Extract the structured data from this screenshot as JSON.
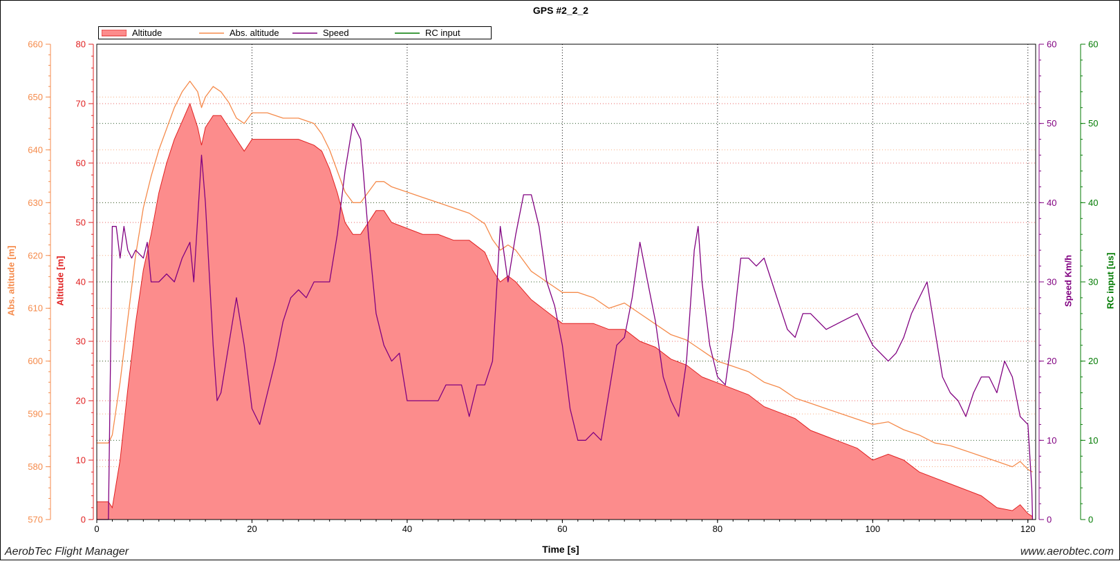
{
  "window": {
    "footer_left": "AerobTec Flight Manager",
    "footer_right": "www.aerobtec.com"
  },
  "colors": {
    "altitude_fill": "#fc8c8c",
    "altitude_line": "#e02020",
    "abs_altitude": "#f58a4a",
    "speed": "#800080",
    "rc_input": "#007a00",
    "grid_x": "#000000",
    "grid_alt": "#e02020",
    "grid_abs": "#f58a4a",
    "grid_speed": "#800080",
    "grid_rc": "#007a00"
  },
  "chart_data": {
    "type": "line",
    "title": "GPS #2_2_2",
    "xlabel": "Time [s]",
    "xlim": [
      0,
      121
    ],
    "x_ticks": [
      "0",
      "20",
      "40",
      "60",
      "80",
      "100",
      "120"
    ],
    "axes": {
      "altitude": {
        "label": "Altitude [m]",
        "range": [
          0,
          80
        ],
        "ticks": [
          "0",
          "10",
          "20",
          "30",
          "40",
          "50",
          "60",
          "70",
          "80"
        ]
      },
      "abs_altitude": {
        "label": "Abs. altitude [m]",
        "range": [
          570,
          660
        ],
        "ticks": [
          "570",
          "580",
          "590",
          "600",
          "610",
          "620",
          "630",
          "640",
          "650",
          "660"
        ]
      },
      "speed": {
        "label": "Speed Km/h",
        "range": [
          0,
          60
        ],
        "ticks": [
          "0",
          "10",
          "20",
          "30",
          "40",
          "50",
          "60"
        ]
      },
      "rc_input": {
        "label": "RC input [us]",
        "range": [
          0,
          60
        ],
        "ticks": [
          "0",
          "10",
          "20",
          "30",
          "40",
          "50",
          "60"
        ]
      }
    },
    "legend_placement": "top-left",
    "grid": true,
    "series": [
      {
        "name": "Altitude",
        "axis": "altitude",
        "style": "area",
        "points": [
          [
            0,
            3
          ],
          [
            1,
            3
          ],
          [
            1.5,
            3
          ],
          [
            2,
            2
          ],
          [
            3,
            10
          ],
          [
            4,
            22
          ],
          [
            5,
            33
          ],
          [
            6,
            42
          ],
          [
            7,
            48
          ],
          [
            8,
            55
          ],
          [
            9,
            60
          ],
          [
            10,
            64
          ],
          [
            11,
            67
          ],
          [
            12,
            70
          ],
          [
            13,
            66
          ],
          [
            13.5,
            63
          ],
          [
            14,
            66
          ],
          [
            15,
            68
          ],
          [
            16,
            68
          ],
          [
            17,
            66
          ],
          [
            18,
            64
          ],
          [
            19,
            62
          ],
          [
            20,
            64
          ],
          [
            21,
            64
          ],
          [
            22,
            64
          ],
          [
            24,
            64
          ],
          [
            26,
            64
          ],
          [
            28,
            63
          ],
          [
            29,
            62
          ],
          [
            30,
            59
          ],
          [
            31,
            55
          ],
          [
            32,
            50
          ],
          [
            33,
            48
          ],
          [
            34,
            48
          ],
          [
            35,
            50
          ],
          [
            36,
            52
          ],
          [
            37,
            52
          ],
          [
            38,
            50
          ],
          [
            40,
            49
          ],
          [
            42,
            48
          ],
          [
            44,
            48
          ],
          [
            46,
            47
          ],
          [
            48,
            47
          ],
          [
            50,
            45
          ],
          [
            51,
            42
          ],
          [
            52,
            40
          ],
          [
            53,
            41
          ],
          [
            54,
            40
          ],
          [
            56,
            37
          ],
          [
            58,
            35
          ],
          [
            60,
            33
          ],
          [
            62,
            33
          ],
          [
            64,
            33
          ],
          [
            66,
            32
          ],
          [
            68,
            32
          ],
          [
            70,
            30
          ],
          [
            72,
            29
          ],
          [
            74,
            27
          ],
          [
            76,
            26
          ],
          [
            78,
            24
          ],
          [
            80,
            23
          ],
          [
            82,
            22
          ],
          [
            84,
            21
          ],
          [
            86,
            19
          ],
          [
            88,
            18
          ],
          [
            90,
            17
          ],
          [
            92,
            15
          ],
          [
            94,
            14
          ],
          [
            96,
            13
          ],
          [
            98,
            12
          ],
          [
            100,
            10
          ],
          [
            102,
            11
          ],
          [
            104,
            10
          ],
          [
            106,
            8
          ],
          [
            108,
            7
          ],
          [
            110,
            6
          ],
          [
            112,
            5
          ],
          [
            114,
            4
          ],
          [
            116,
            2
          ],
          [
            118,
            1.5
          ],
          [
            119,
            2.5
          ],
          [
            120,
            1
          ],
          [
            120.6,
            0.5
          ]
        ]
      },
      {
        "name": "Abs. altitude",
        "axis": "abs_altitude",
        "style": "line",
        "points": [
          [
            0,
            584.5
          ],
          [
            1.5,
            584.5
          ],
          [
            2,
            586
          ],
          [
            3,
            596
          ],
          [
            4,
            608
          ],
          [
            5,
            620
          ],
          [
            6,
            629
          ],
          [
            7,
            635
          ],
          [
            8,
            640
          ],
          [
            9,
            644
          ],
          [
            10,
            648
          ],
          [
            11,
            651
          ],
          [
            12,
            653
          ],
          [
            13,
            651
          ],
          [
            13.5,
            648
          ],
          [
            14,
            650
          ],
          [
            15,
            652
          ],
          [
            16,
            651
          ],
          [
            17,
            649
          ],
          [
            18,
            646
          ],
          [
            19,
            645
          ],
          [
            20,
            647
          ],
          [
            22,
            647
          ],
          [
            24,
            646
          ],
          [
            26,
            646
          ],
          [
            28,
            645
          ],
          [
            29,
            643
          ],
          [
            30,
            640
          ],
          [
            31,
            636
          ],
          [
            32,
            632
          ],
          [
            33,
            630
          ],
          [
            34,
            630
          ],
          [
            35,
            632
          ],
          [
            36,
            634
          ],
          [
            37,
            634
          ],
          [
            38,
            633
          ],
          [
            40,
            632
          ],
          [
            42,
            631
          ],
          [
            44,
            630
          ],
          [
            46,
            629
          ],
          [
            48,
            628
          ],
          [
            50,
            626
          ],
          [
            51,
            623
          ],
          [
            52,
            621
          ],
          [
            53,
            622
          ],
          [
            54,
            621
          ],
          [
            56,
            617
          ],
          [
            58,
            615
          ],
          [
            60,
            613
          ],
          [
            62,
            613
          ],
          [
            64,
            612
          ],
          [
            66,
            610
          ],
          [
            68,
            611
          ],
          [
            70,
            609
          ],
          [
            72,
            607
          ],
          [
            74,
            605
          ],
          [
            76,
            604
          ],
          [
            78,
            602
          ],
          [
            80,
            600
          ],
          [
            82,
            599
          ],
          [
            84,
            598
          ],
          [
            86,
            596
          ],
          [
            88,
            595
          ],
          [
            90,
            593
          ],
          [
            92,
            592
          ],
          [
            94,
            591
          ],
          [
            96,
            590
          ],
          [
            98,
            589
          ],
          [
            100,
            588
          ],
          [
            102,
            588.5
          ],
          [
            104,
            587
          ],
          [
            106,
            586
          ],
          [
            108,
            584.5
          ],
          [
            110,
            584
          ],
          [
            112,
            583
          ],
          [
            114,
            582
          ],
          [
            116,
            581
          ],
          [
            118,
            580
          ],
          [
            119,
            581
          ],
          [
            120,
            579.5
          ],
          [
            120.6,
            579
          ]
        ]
      },
      {
        "name": "Speed",
        "axis": "speed",
        "style": "line",
        "points": [
          [
            0,
            0
          ],
          [
            1,
            0
          ],
          [
            1.5,
            0
          ],
          [
            2,
            37
          ],
          [
            2.5,
            37
          ],
          [
            3,
            33
          ],
          [
            3.5,
            37
          ],
          [
            4,
            34
          ],
          [
            4.5,
            33
          ],
          [
            5,
            34
          ],
          [
            6,
            33
          ],
          [
            6.5,
            35
          ],
          [
            7,
            30
          ],
          [
            8,
            30
          ],
          [
            9,
            31
          ],
          [
            10,
            30
          ],
          [
            11,
            33
          ],
          [
            12,
            35
          ],
          [
            12.5,
            30
          ],
          [
            13,
            38
          ],
          [
            13.5,
            46
          ],
          [
            14,
            40
          ],
          [
            15,
            22
          ],
          [
            15.5,
            15
          ],
          [
            16,
            16
          ],
          [
            17,
            22
          ],
          [
            18,
            28
          ],
          [
            19,
            22
          ],
          [
            20,
            14
          ],
          [
            21,
            12
          ],
          [
            22,
            16
          ],
          [
            23,
            20
          ],
          [
            24,
            25
          ],
          [
            25,
            28
          ],
          [
            26,
            29
          ],
          [
            27,
            28
          ],
          [
            28,
            30
          ],
          [
            30,
            30
          ],
          [
            31,
            36
          ],
          [
            32,
            44
          ],
          [
            33,
            50
          ],
          [
            34,
            48
          ],
          [
            35,
            36
          ],
          [
            36,
            26
          ],
          [
            37,
            22
          ],
          [
            38,
            20
          ],
          [
            39,
            21
          ],
          [
            40,
            15
          ],
          [
            42,
            15
          ],
          [
            44,
            15
          ],
          [
            45,
            17
          ],
          [
            47,
            17
          ],
          [
            48,
            13
          ],
          [
            49,
            17
          ],
          [
            50,
            17
          ],
          [
            51,
            20
          ],
          [
            52,
            37
          ],
          [
            53,
            30
          ],
          [
            54,
            36
          ],
          [
            55,
            41
          ],
          [
            56,
            41
          ],
          [
            57,
            37
          ],
          [
            58,
            30
          ],
          [
            59,
            27
          ],
          [
            60,
            22
          ],
          [
            61,
            14
          ],
          [
            62,
            10
          ],
          [
            63,
            10
          ],
          [
            64,
            11
          ],
          [
            65,
            10
          ],
          [
            66,
            16
          ],
          [
            67,
            22
          ],
          [
            68,
            23
          ],
          [
            69,
            28
          ],
          [
            70,
            35
          ],
          [
            71,
            30
          ],
          [
            72,
            25
          ],
          [
            73,
            18
          ],
          [
            74,
            15
          ],
          [
            75,
            13
          ],
          [
            76,
            20
          ],
          [
            77,
            34
          ],
          [
            77.5,
            37
          ],
          [
            78,
            30
          ],
          [
            79,
            22
          ],
          [
            80,
            18
          ],
          [
            81,
            17
          ],
          [
            82,
            24
          ],
          [
            83,
            33
          ],
          [
            84,
            33
          ],
          [
            85,
            32
          ],
          [
            86,
            33
          ],
          [
            87,
            30
          ],
          [
            88,
            27
          ],
          [
            89,
            24
          ],
          [
            90,
            23
          ],
          [
            91,
            26
          ],
          [
            92,
            26
          ],
          [
            94,
            24
          ],
          [
            96,
            25
          ],
          [
            98,
            26
          ],
          [
            99,
            24
          ],
          [
            100,
            22
          ],
          [
            101,
            21
          ],
          [
            102,
            20
          ],
          [
            103,
            21
          ],
          [
            104,
            23
          ],
          [
            105,
            26
          ],
          [
            106,
            28
          ],
          [
            107,
            30
          ],
          [
            108,
            24
          ],
          [
            109,
            18
          ],
          [
            110,
            16
          ],
          [
            111,
            15
          ],
          [
            112,
            13
          ],
          [
            113,
            16
          ],
          [
            114,
            18
          ],
          [
            115,
            18
          ],
          [
            116,
            16
          ],
          [
            117,
            20
          ],
          [
            118,
            18
          ],
          [
            119,
            13
          ],
          [
            120,
            12
          ],
          [
            120.5,
            4
          ],
          [
            120.6,
            0
          ]
        ]
      },
      {
        "name": "RC input",
        "axis": "rc_input",
        "style": "line",
        "points": []
      }
    ]
  }
}
